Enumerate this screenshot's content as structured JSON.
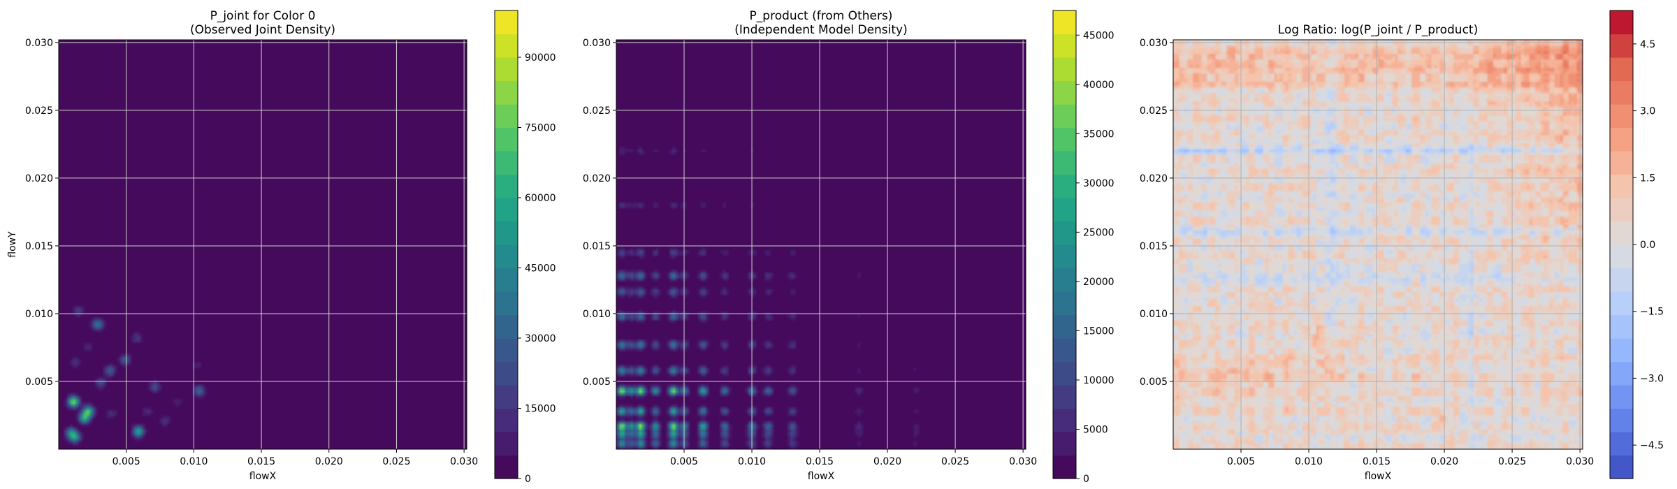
{
  "colors": {
    "viridis": [
      "#440154",
      "#482475",
      "#414487",
      "#355f8d",
      "#2a788e",
      "#21918c",
      "#22a884",
      "#44bf70",
      "#7ad151",
      "#bddf26",
      "#fde725"
    ],
    "coolwarm": [
      "#3b4cc0",
      "#6282ea",
      "#8db0fe",
      "#b8d0f9",
      "#dddddd",
      "#f5c4ac",
      "#f4987a",
      "#e26952",
      "#b40426"
    ]
  },
  "chart_data": [
    {
      "type": "heatmap",
      "title": "P_joint for Color 0\n(Observed Joint Density)",
      "xlabel": "flowX",
      "ylabel": "flowY",
      "xlim": [
        0.0,
        0.0302
      ],
      "ylim": [
        0.0,
        0.0302
      ],
      "x_ticks": [
        "0.005",
        "0.010",
        "0.015",
        "0.020",
        "0.025",
        "0.030"
      ],
      "y_ticks": [
        "0.005",
        "0.010",
        "0.015",
        "0.020",
        "0.025",
        "0.030"
      ],
      "colormap": "viridis",
      "colorbar": {
        "min": 0,
        "max": 100000,
        "ticks": [
          0,
          15000,
          30000,
          45000,
          60000,
          75000,
          90000
        ],
        "tick_labels": [
          "0",
          "15000",
          "30000",
          "45000",
          "60000",
          "75000",
          "90000"
        ]
      },
      "grid": true,
      "hotspots": [
        {
          "x": 0.0011,
          "y": 0.0035,
          "value": 82000
        },
        {
          "x": 0.0022,
          "y": 0.0028,
          "value": 68000
        },
        {
          "x": 0.0019,
          "y": 0.0023,
          "value": 62000
        },
        {
          "x": 0.0059,
          "y": 0.0013,
          "value": 60000
        },
        {
          "x": 0.0012,
          "y": 0.0009,
          "value": 52000
        },
        {
          "x": 0.0009,
          "y": 0.0012,
          "value": 42000
        },
        {
          "x": 0.0029,
          "y": 0.0092,
          "value": 38000
        },
        {
          "x": 0.0104,
          "y": 0.0043,
          "value": 34000
        },
        {
          "x": 0.0038,
          "y": 0.0058,
          "value": 30000
        },
        {
          "x": 0.0049,
          "y": 0.0066,
          "value": 28000
        },
        {
          "x": 0.0071,
          "y": 0.0046,
          "value": 24000
        },
        {
          "x": 0.0031,
          "y": 0.0049,
          "value": 22000
        },
        {
          "x": 0.0015,
          "y": 0.0102,
          "value": 18000
        },
        {
          "x": 0.0058,
          "y": 0.0082,
          "value": 16000
        },
        {
          "x": 0.0079,
          "y": 0.0021,
          "value": 15000
        },
        {
          "x": 0.0039,
          "y": 0.0026,
          "value": 14000
        },
        {
          "x": 0.0012,
          "y": 0.0064,
          "value": 13000
        },
        {
          "x": 0.0066,
          "y": 0.0028,
          "value": 12000
        },
        {
          "x": 0.0022,
          "y": 0.0076,
          "value": 11000
        },
        {
          "x": 0.0102,
          "y": 0.0062,
          "value": 9000
        },
        {
          "x": 0.0088,
          "y": 0.0035,
          "value": 9000
        },
        {
          "x": 0.0142,
          "y": 0.0012,
          "value": 3000
        },
        {
          "x": 0.0162,
          "y": 0.0027,
          "value": 2500
        }
      ]
    },
    {
      "type": "heatmap",
      "title": "P_product (from Others)\n(Independent Model Density)",
      "xlabel": "flowX",
      "ylabel": "",
      "xlim": [
        0.0,
        0.0302
      ],
      "ylim": [
        0.0,
        0.0302
      ],
      "x_ticks": [
        "0.005",
        "0.010",
        "0.015",
        "0.020",
        "0.025",
        "0.030"
      ],
      "y_ticks": [
        "0.005",
        "0.010",
        "0.015",
        "0.020",
        "0.025",
        "0.030"
      ],
      "colormap": "viridis",
      "colorbar": {
        "min": 0,
        "max": 47500,
        "ticks": [
          0,
          5000,
          10000,
          15000,
          20000,
          25000,
          30000,
          35000,
          40000,
          45000
        ],
        "tick_labels": [
          "0",
          "5000",
          "10000",
          "15000",
          "20000",
          "25000",
          "30000",
          "35000",
          "40000",
          "45000"
        ]
      },
      "grid": true,
      "x_marginal_peaks": [
        {
          "x": 0.0004,
          "w": 1.0
        },
        {
          "x": 0.0011,
          "w": 0.6
        },
        {
          "x": 0.0018,
          "w": 1.0
        },
        {
          "x": 0.0029,
          "w": 0.6
        },
        {
          "x": 0.0042,
          "w": 1.0
        },
        {
          "x": 0.005,
          "w": 0.55
        },
        {
          "x": 0.0064,
          "w": 0.7
        },
        {
          "x": 0.008,
          "w": 0.45
        },
        {
          "x": 0.01,
          "w": 0.5
        },
        {
          "x": 0.0112,
          "w": 0.4
        },
        {
          "x": 0.013,
          "w": 0.35
        },
        {
          "x": 0.0179,
          "w": 0.15
        },
        {
          "x": 0.0221,
          "w": 0.12
        }
      ],
      "y_marginal_peaks": [
        {
          "y": 0.0004,
          "w": 0.6
        },
        {
          "y": 0.0011,
          "w": 0.7
        },
        {
          "y": 0.0017,
          "w": 1.0
        },
        {
          "y": 0.0028,
          "w": 0.7
        },
        {
          "y": 0.0043,
          "w": 1.0
        },
        {
          "y": 0.0058,
          "w": 0.55
        },
        {
          "y": 0.0077,
          "w": 0.5
        },
        {
          "y": 0.0098,
          "w": 0.45
        },
        {
          "y": 0.0116,
          "w": 0.35
        },
        {
          "y": 0.0128,
          "w": 0.45
        },
        {
          "y": 0.0145,
          "w": 0.25
        },
        {
          "y": 0.018,
          "w": 0.15
        },
        {
          "y": 0.022,
          "w": 0.12
        }
      ]
    },
    {
      "type": "heatmap",
      "title": "Log Ratio: log(P_joint / P_product)",
      "xlabel": "flowX",
      "ylabel": "",
      "xlim": [
        0.0,
        0.0302
      ],
      "ylim": [
        0.0,
        0.0302
      ],
      "x_ticks": [
        "0.005",
        "0.010",
        "0.015",
        "0.020",
        "0.025",
        "0.030"
      ],
      "y_ticks": [
        "0.005",
        "0.010",
        "0.015",
        "0.020",
        "0.025",
        "0.030"
      ],
      "colormap": "coolwarm",
      "colorbar": {
        "min": -5.25,
        "max": 5.25,
        "ticks": [
          -4.5,
          -3.0,
          -1.5,
          0.0,
          1.5,
          3.0,
          4.5
        ],
        "tick_labels": [
          "−4.5",
          "−3.0",
          "−1.5",
          "0.0",
          "1.5",
          "3.0",
          "4.5"
        ]
      },
      "grid": true
    }
  ]
}
